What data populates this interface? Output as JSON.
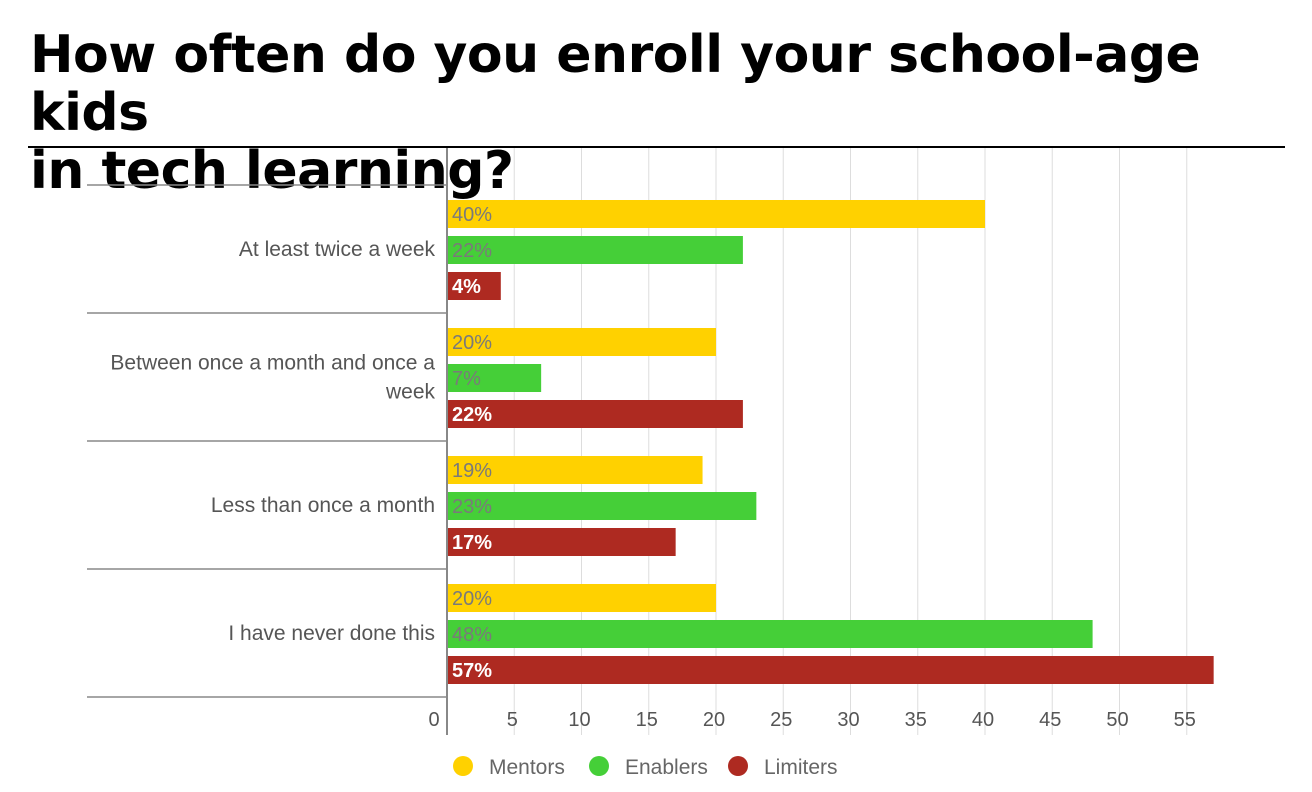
{
  "title_line1": "How often do you enroll your school-age kids",
  "title_line2": "in tech learning?",
  "chart_data": {
    "type": "bar",
    "orientation": "horizontal",
    "title": "How often do you enroll your school-age kids in tech learning?",
    "categories": [
      "At least twice a week",
      "Between once a month and once a week",
      "Less than once a month",
      "I have never done this"
    ],
    "series": [
      {
        "name": "Mentors",
        "color": "#FFD100",
        "label_color": "#7a7a7a",
        "values": [
          40,
          20,
          19,
          20
        ],
        "labels": [
          "40%",
          "20%",
          "19%",
          "20%"
        ]
      },
      {
        "name": "Enablers",
        "color": "#45CF38",
        "label_color": "#7a7a7a",
        "values": [
          22,
          7,
          23,
          48
        ],
        "labels": [
          "22%",
          "7%",
          "23%",
          "48%"
        ]
      },
      {
        "name": "Limiters",
        "color": "#AE2A21",
        "label_color": "#ffffff",
        "values": [
          4,
          22,
          17,
          57
        ],
        "labels": [
          "4%",
          "22%",
          "17%",
          "57%"
        ]
      }
    ],
    "xlim": [
      0,
      59
    ],
    "ticks": [
      0,
      5,
      10,
      15,
      20,
      25,
      30,
      35,
      40,
      45,
      50,
      55
    ],
    "grid": true,
    "legend": "bottom"
  }
}
